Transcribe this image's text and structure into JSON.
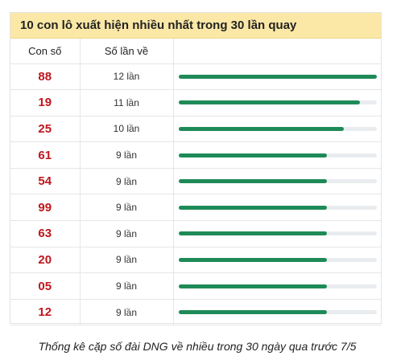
{
  "header": {
    "title": "10 con lô xuất hiện nhiều nhất trong 30 lần quay"
  },
  "columns": {
    "number": "Con số",
    "count": "Số lần về",
    "bar": ""
  },
  "max_count": 12,
  "rows": [
    {
      "number": "88",
      "count": "12 lần",
      "value": 12
    },
    {
      "number": "19",
      "count": "11 lần",
      "value": 11
    },
    {
      "number": "25",
      "count": "10 lần",
      "value": 10
    },
    {
      "number": "61",
      "count": "9 lần",
      "value": 9
    },
    {
      "number": "54",
      "count": "9 lần",
      "value": 9
    },
    {
      "number": "99",
      "count": "9 lần",
      "value": 9
    },
    {
      "number": "63",
      "count": "9 lần",
      "value": 9
    },
    {
      "number": "20",
      "count": "9 lần",
      "value": 9
    },
    {
      "number": "05",
      "count": "9 lần",
      "value": 9
    },
    {
      "number": "12",
      "count": "9 lần",
      "value": 9
    }
  ],
  "caption": "Thống kê cặp số đài DNG về nhiều trong 30 ngày qua trước 7/5",
  "colors": {
    "header_bg": "#fbe8a6",
    "number": "#c0161c",
    "bar_fill": "#1e8a57",
    "bar_track": "#e9ecef"
  }
}
